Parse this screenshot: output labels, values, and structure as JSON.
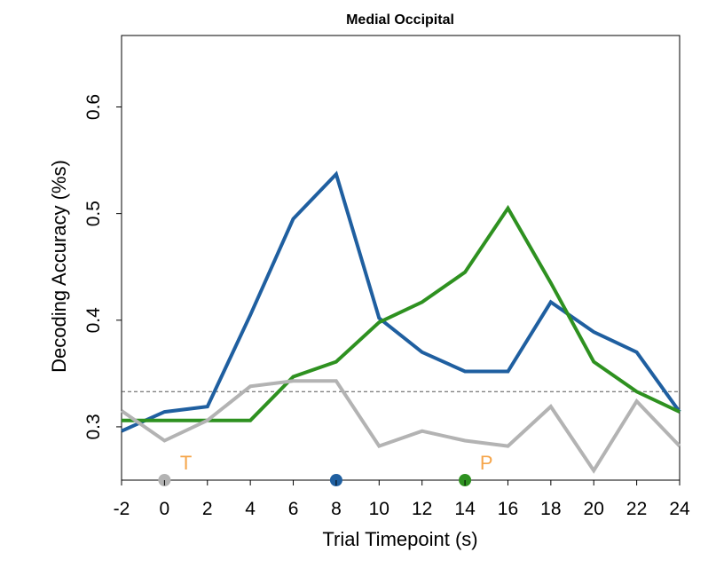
{
  "chart_data": {
    "type": "line",
    "title": "Medial Occipital",
    "xlabel": "Trial Timepoint (s)",
    "ylabel": "Decoding Accuracy (%s)",
    "xlim": [
      -2,
      24
    ],
    "ylim": [
      0.25,
      0.667
    ],
    "x": [
      -2,
      0,
      2,
      4,
      6,
      8,
      10,
      12,
      14,
      16,
      18,
      20,
      22,
      24
    ],
    "x_ticks": [
      "-2",
      "0",
      "2",
      "4",
      "6",
      "8",
      "10",
      "12",
      "14",
      "16",
      "18",
      "20",
      "22",
      "24"
    ],
    "y_ticks": [
      {
        "value": 0.3,
        "label": "0.3"
      },
      {
        "value": 0.4,
        "label": "0.4"
      },
      {
        "value": 0.5,
        "label": "0.5"
      },
      {
        "value": 0.6,
        "label": "0.6"
      }
    ],
    "chance_level": 0.333,
    "series": [
      {
        "color": "#1f5fa0",
        "values": [
          0.296,
          0.314,
          0.319,
          0.405,
          0.495,
          0.537,
          0.402,
          0.37,
          0.352,
          0.352,
          0.417,
          0.389,
          0.37,
          0.314
        ]
      },
      {
        "color": "#2e9120",
        "values": [
          0.306,
          0.306,
          0.306,
          0.306,
          0.347,
          0.361,
          0.398,
          0.417,
          0.445,
          0.505,
          0.435,
          0.361,
          0.333,
          0.314
        ]
      },
      {
        "color": "#b3b3b3",
        "values": [
          0.315,
          0.287,
          0.306,
          0.338,
          0.343,
          0.343,
          0.282,
          0.296,
          0.287,
          0.282,
          0.319,
          0.259,
          0.324,
          0.282
        ]
      }
    ],
    "markers": [
      {
        "x": 0,
        "color": "#b3b3b3"
      },
      {
        "x": 8,
        "color": "#1f5fa0"
      },
      {
        "x": 14,
        "color": "#2e9120"
      }
    ],
    "annotations": [
      {
        "text": "T",
        "x": 1,
        "color": "#f5a54a"
      },
      {
        "text": "P",
        "x": 15,
        "color": "#f5a54a"
      }
    ]
  }
}
